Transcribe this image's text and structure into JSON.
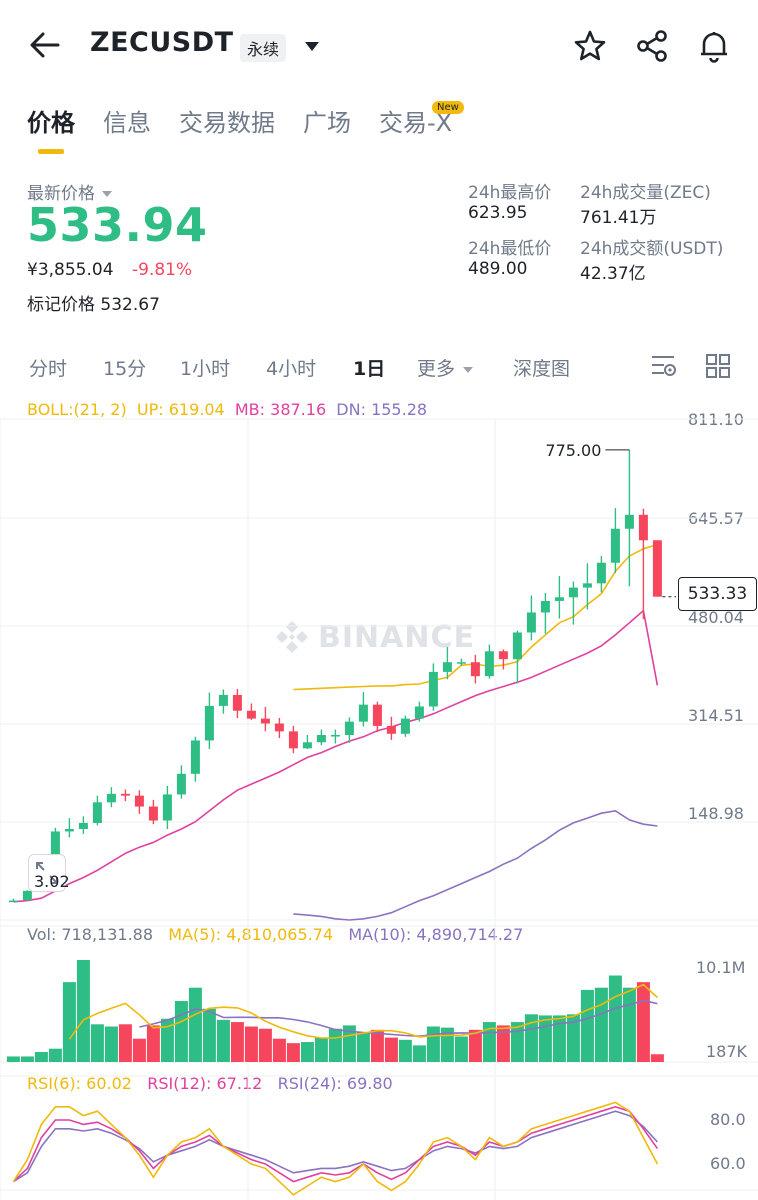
{
  "header": {
    "symbol": "ZECUSDT",
    "contract_type": "永续",
    "icons": [
      "back-arrow-icon",
      "dropdown-caret-icon",
      "star-icon",
      "share-icon",
      "bell-icon"
    ]
  },
  "tabs": [
    {
      "label": "价格",
      "active": true
    },
    {
      "label": "信息",
      "active": false
    },
    {
      "label": "交易数据",
      "active": false
    },
    {
      "label": "广场",
      "active": false
    },
    {
      "label": "交易-X",
      "active": false
    }
  ],
  "new_badge": "New",
  "price": {
    "last_label": "最新价格",
    "last": "533.94",
    "cny": "¥3,855.04",
    "change": "-9.81%",
    "mark_label": "标记价格",
    "mark": "532.67"
  },
  "stats": {
    "high_label": "24h最高价",
    "high": "623.95",
    "low_label": "24h最低价",
    "low": "489.00",
    "vol_label": "24h成交量(ZEC)",
    "vol": "761.41万",
    "amt_label": "24h成交额(USDT)",
    "amt": "42.37亿"
  },
  "intervals": [
    {
      "label": "分时",
      "active": false
    },
    {
      "label": "15分",
      "active": false
    },
    {
      "label": "1小时",
      "active": false
    },
    {
      "label": "4小时",
      "active": false
    },
    {
      "label": "1日",
      "active": true
    },
    {
      "label": "更多",
      "active": false
    },
    {
      "label": "深度图",
      "active": false
    }
  ],
  "indicators": {
    "boll": "BOLL:(21, 2)",
    "up": "UP: 619.04",
    "mb": "MB: 387.16",
    "dn": "DN: 155.28",
    "vol": "Vol: 718,131.88",
    "ma5": "MA(5): 4,810,065.74",
    "ma10": "MA(10): 4,890,714.27",
    "rsi6": "RSI(6): 60.02",
    "rsi12": "RSI(12): 67.12",
    "rsi24": "RSI(24): 69.80"
  },
  "axis": {
    "price_ticks": [
      "811.10",
      "645.57",
      "480.04",
      "314.51",
      "148.98"
    ],
    "vol_ticks": [
      "10.1M",
      "187K"
    ],
    "rsi_ticks": [
      "80.0",
      "60.0"
    ]
  },
  "chart_labels": {
    "high_marker": "775.00",
    "current_price": "533.33",
    "bottom_left": "3.02"
  },
  "watermark": "BINANCE",
  "colors": {
    "up": "#2ebd85",
    "down": "#f6465d",
    "accent": "#f0b90b",
    "boll_up": "#f0b90b",
    "boll_mb": "#e040a0",
    "boll_dn": "#8a72c2",
    "grid": "#eef0f2"
  },
  "chart_data": {
    "type": "candlestick",
    "price_range": [
      0,
      811.1
    ],
    "candles": [
      [
        32,
        32,
        35,
        30
      ],
      [
        33,
        48,
        49,
        31
      ],
      [
        48,
        91,
        95,
        46
      ],
      [
        91,
        146,
        152,
        88
      ],
      [
        146,
        150,
        168,
        136
      ],
      [
        150,
        160,
        171,
        142
      ],
      [
        160,
        194,
        205,
        156
      ],
      [
        194,
        208,
        219,
        186
      ],
      [
        208,
        205,
        215,
        196
      ],
      [
        205,
        187,
        214,
        175
      ],
      [
        187,
        164,
        198,
        158
      ],
      [
        164,
        207,
        221,
        150
      ],
      [
        207,
        241,
        255,
        200
      ],
      [
        241,
        296,
        302,
        228
      ],
      [
        296,
        353,
        375,
        282
      ],
      [
        353,
        371,
        380,
        340
      ],
      [
        371,
        345,
        381,
        333
      ],
      [
        345,
        332,
        357,
        330
      ],
      [
        332,
        324,
        351,
        311
      ],
      [
        324,
        311,
        333,
        300
      ],
      [
        311,
        283,
        320,
        275
      ],
      [
        283,
        293,
        305,
        282
      ],
      [
        293,
        305,
        314,
        288
      ],
      [
        305,
        305,
        314,
        291
      ],
      [
        305,
        327,
        334,
        292
      ],
      [
        327,
        355,
        376,
        319
      ],
      [
        355,
        320,
        360,
        310
      ],
      [
        320,
        307,
        335,
        297
      ],
      [
        307,
        332,
        337,
        302
      ],
      [
        332,
        352,
        360,
        327
      ],
      [
        352,
        409,
        423,
        345
      ],
      [
        409,
        425,
        450,
        397
      ],
      [
        425,
        425,
        431,
        419
      ],
      [
        425,
        402,
        437,
        390
      ],
      [
        402,
        443,
        454,
        398
      ],
      [
        443,
        430,
        446,
        413
      ],
      [
        430,
        474,
        477,
        390
      ],
      [
        474,
        507,
        535,
        461
      ],
      [
        507,
        526,
        539,
        472
      ],
      [
        526,
        532,
        567,
        497
      ],
      [
        532,
        548,
        558,
        487
      ],
      [
        548,
        555,
        588,
        512
      ],
      [
        555,
        589,
        600,
        540
      ],
      [
        589,
        645,
        679,
        572
      ],
      [
        645,
        668,
        775,
        550
      ],
      [
        668,
        626,
        678,
        496
      ],
      [
        626,
        533,
        626,
        533
      ]
    ],
    "boll_up": [
      null,
      null,
      null,
      null,
      null,
      null,
      null,
      null,
      null,
      null,
      null,
      null,
      null,
      null,
      null,
      null,
      null,
      null,
      null,
      null,
      380,
      381,
      382,
      383,
      384,
      385,
      386,
      386,
      388,
      389,
      395,
      400,
      420,
      422,
      418,
      420,
      426,
      450,
      470,
      490,
      500,
      520,
      538,
      575,
      600,
      612,
      619
    ],
    "boll_mb": [
      30,
      32,
      36,
      48,
      60,
      70,
      82,
      96,
      110,
      120,
      128,
      140,
      150,
      162,
      180,
      198,
      214,
      224,
      234,
      244,
      256,
      268,
      276,
      286,
      295,
      302,
      312,
      318,
      326,
      332,
      340,
      350,
      360,
      370,
      378,
      385,
      392,
      400,
      410,
      420,
      430,
      440,
      452,
      470,
      490,
      510,
      387
    ],
    "boll_dn": [
      null,
      null,
      null,
      null,
      null,
      null,
      null,
      null,
      null,
      null,
      null,
      null,
      null,
      null,
      null,
      null,
      null,
      null,
      null,
      null,
      10,
      8,
      6,
      2,
      0,
      2,
      6,
      12,
      22,
      32,
      40,
      50,
      60,
      70,
      80,
      92,
      102,
      118,
      132,
      148,
      160,
      168,
      176,
      180,
      165,
      158,
      155
    ],
    "volume_M": [
      0.5,
      0.5,
      0.9,
      1.2,
      7.2,
      9.2,
      3.4,
      3.2,
      3.4,
      2.1,
      3.3,
      3.9,
      5.5,
      6.7,
      4.8,
      3.8,
      3.6,
      3.2,
      3.0,
      2.1,
      1.7,
      1.8,
      2.2,
      3.0,
      3.3,
      2.7,
      2.9,
      2.2,
      2.0,
      1.5,
      3.2,
      3.1,
      2.3,
      2.9,
      3.6,
      3.3,
      3.6,
      4.3,
      4.2,
      4.2,
      4.3,
      6.5,
      6.7,
      7.8,
      6.7,
      7.2,
      0.7
    ],
    "rsi6": [
      52,
      62,
      78,
      86,
      86,
      82,
      84,
      78,
      72,
      64,
      54,
      64,
      70,
      72,
      76,
      68,
      64,
      60,
      58,
      52,
      46,
      50,
      54,
      52,
      54,
      60,
      52,
      48,
      52,
      60,
      70,
      72,
      68,
      62,
      72,
      68,
      70,
      76,
      78,
      80,
      82,
      84,
      86,
      88,
      84,
      72,
      60
    ],
    "rsi12": [
      52,
      58,
      72,
      80,
      80,
      78,
      79,
      76,
      72,
      66,
      58,
      64,
      68,
      70,
      73,
      68,
      65,
      62,
      60,
      56,
      52,
      54,
      56,
      55,
      56,
      60,
      56,
      53,
      56,
      62,
      68,
      70,
      68,
      64,
      70,
      68,
      70,
      74,
      76,
      78,
      80,
      82,
      84,
      86,
      84,
      76,
      67
    ],
    "rsi24": [
      52,
      56,
      68,
      76,
      76,
      75,
      76,
      74,
      71,
      67,
      61,
      64,
      66,
      68,
      71,
      68,
      66,
      64,
      62,
      59,
      56,
      57,
      58,
      58,
      59,
      61,
      59,
      57,
      58,
      62,
      66,
      68,
      67,
      65,
      68,
      67,
      68,
      72,
      74,
      76,
      78,
      80,
      82,
      84,
      82,
      77,
      70
    ]
  }
}
